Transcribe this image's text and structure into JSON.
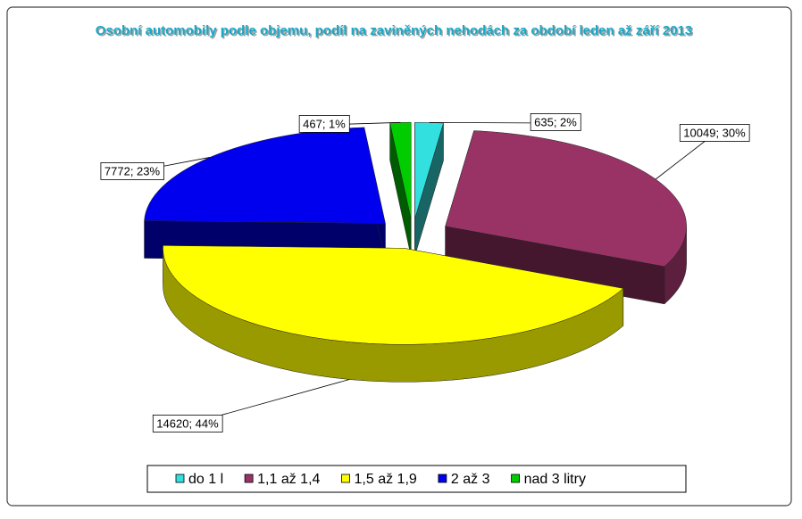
{
  "chart_data": {
    "type": "pie3d",
    "title": "Osobní automobily podle objemu, podíl na zaviněných nehodách za období leden až září 2013",
    "categories": [
      "do 1 l",
      "1,1 až 1,4",
      "1,5 až 1,9",
      "2 až 3",
      "nad 3 litry"
    ],
    "values": [
      635,
      10049,
      14620,
      7772,
      467
    ],
    "value_labels": [
      "635; 2%",
      "10049; 30%",
      "14620; 44%",
      "7772; 23%",
      "467; 1%"
    ],
    "colors": [
      "#33e0e0",
      "#993366",
      "#ffff00",
      "#0000ee",
      "#00cc00"
    ],
    "legend": "bottom"
  }
}
